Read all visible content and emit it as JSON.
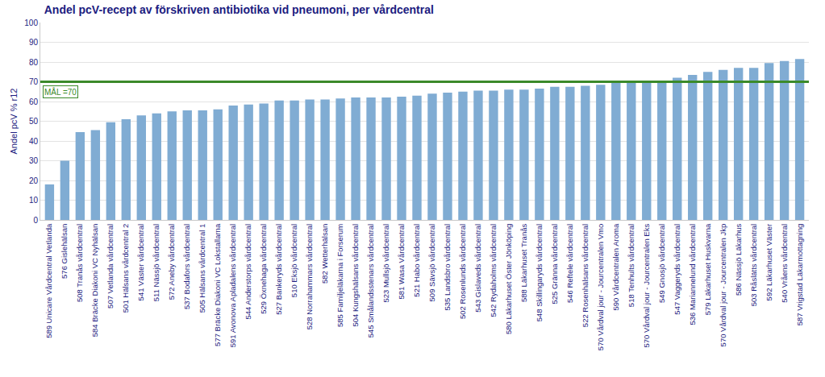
{
  "chart_data": {
    "type": "bar",
    "title": "Andel pcV-recept av förskriven antibiotika vid pneumoni, per vårdcentral",
    "y_label": "Andel pcV % r12",
    "categories": [
      "589 Unicare Vårdcentral Vetlanda",
      "576 Gislehälsan",
      "508 Tranås vårdcentral",
      "584 Bräcke Diakoni VC Nyhälsan",
      "507 Vetlanda vårdcentral",
      "501 Hälsans vårdcentral 2",
      "541 Väster vårdcentral",
      "511 Nässjö vårdcentral",
      "572 Aneby vårdcentral",
      "537 Bodafors vårdcentral",
      "505 Hälsans vårdcentral 1",
      "577 Bräcke Diakoni VC Lokstallarna",
      "591 Avonova Apladalens vårdcentral",
      "544 Anderstorps vårdcentral",
      "529 Öxnehaga vårdcentral",
      "527 Bankeryds vårdcentral",
      "510 Eksjö vårdcentral",
      "528 Norrahammars vårdcentral",
      "582 Wetterhälsan",
      "585 Familjeläkarna i Forserum",
      "504 Kungshälsans vårdcentral",
      "545 Smålandsstenars vårdcentral",
      "523 Mullsjö vårdcentral",
      "581 Wasa Vårdcentral",
      "521 Habo vårdcentral",
      "509 Sävsjö vårdcentral",
      "535 Landsbro vårdcentral",
      "502 Rosenlunds vårdcentral",
      "543 Gislaveds vårdcentral",
      "542 Rydaholms vårdcentral",
      "580 Läkarhuset Öster Jönköping",
      "588 Läkarhuset Tranås",
      "548 Skillingaryds vårdcentral",
      "525 Gränna vårdcentral",
      "546 Reftele vårdcentral",
      "522 Rosenhälsans vårdcentral",
      "570 Vårdval jour - Jourcentralen Vmo",
      "590 Vårdcentralen Aroma",
      "518 Tenhults vårdcentral",
      "570 Vårdval jour - Jourcentralen Eks",
      "549 Gnosjö vårdcentral",
      "547 Vaggeryds vårdcentral",
      "536 Mariannelund vårdcentral",
      "579 Läkarhuset Huskvarna",
      "570 Vårdval jour - Jourcentralen Jkp",
      "586 Nässjö Läkarhus",
      "503 Råslätts vårdcentral",
      "592 Läkarhuset Väster",
      "540 Vråens vårdcentral",
      "587 Vrigstad Läkarmottagning"
    ],
    "values": [
      18,
      30,
      44.5,
      45.5,
      49.5,
      51,
      53,
      54,
      55,
      55.5,
      55.5,
      56,
      58,
      58.5,
      59,
      60.5,
      60.5,
      61,
      61,
      61.5,
      62,
      62,
      62,
      62.5,
      63,
      64,
      64.5,
      65,
      65.5,
      65.5,
      66,
      66,
      66.5,
      67.5,
      67.5,
      68,
      68.5,
      69.5,
      70,
      70,
      70.5,
      72,
      73.5,
      75,
      76,
      77,
      77,
      79.5,
      80.5,
      81.5
    ],
    "color": "#80acd3",
    "ylim": [
      0,
      100
    ],
    "yticks": [
      0,
      10,
      20,
      30,
      40,
      50,
      60,
      70,
      80,
      90,
      100
    ],
    "grid": true,
    "reference_line": {
      "value": 70,
      "label": "MÅL =70",
      "color": "#3b8a2a"
    }
  }
}
